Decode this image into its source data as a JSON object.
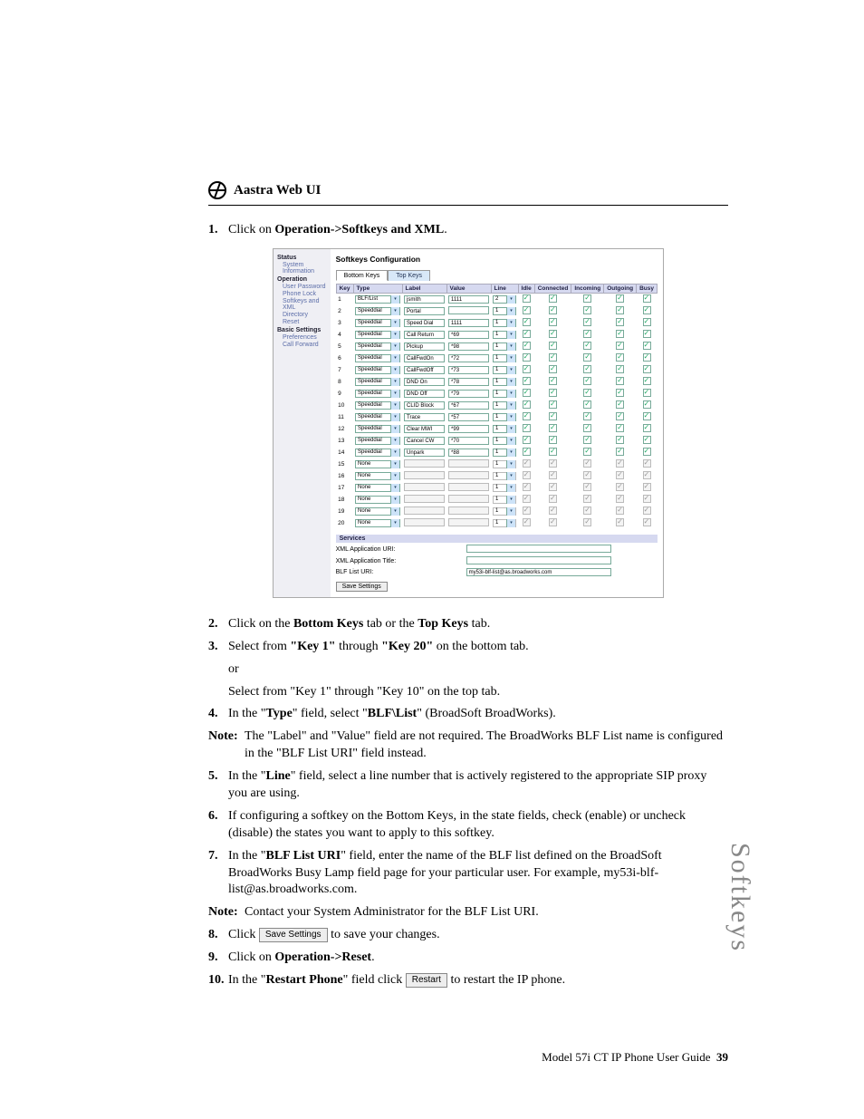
{
  "header": {
    "title": "Aastra Web UI"
  },
  "screenshot": {
    "sidebar": {
      "groups": [
        {
          "cat": "Status",
          "items": [
            "System Information"
          ]
        },
        {
          "cat": "Operation",
          "items": [
            "User Password",
            "Phone Lock",
            "Softkeys and XML",
            "Directory",
            "Reset"
          ]
        },
        {
          "cat": "Basic Settings",
          "items": [
            "Preferences",
            "Call Forward"
          ]
        }
      ]
    },
    "title": "Softkeys Configuration",
    "tabs": {
      "active": "Bottom Keys",
      "inactive": "Top Keys"
    },
    "columns": [
      "Key",
      "Type",
      "Label",
      "Value",
      "Line",
      "Idle",
      "Connected",
      "Incoming",
      "Outgoing",
      "Busy"
    ],
    "rows": [
      {
        "key": "1",
        "type": "BLF/List",
        "label": "jsmith",
        "value": "1111",
        "line": "2",
        "enabled": true
      },
      {
        "key": "2",
        "type": "Speeddial",
        "label": "Portal",
        "value": "",
        "line": "1",
        "enabled": true
      },
      {
        "key": "3",
        "type": "Speeddial",
        "label": "Speed Dial",
        "value": "1111",
        "line": "1",
        "enabled": true
      },
      {
        "key": "4",
        "type": "Speeddial",
        "label": "Call Return",
        "value": "*69",
        "line": "1",
        "enabled": true
      },
      {
        "key": "5",
        "type": "Speeddial",
        "label": "Pickup",
        "value": "*98",
        "line": "1",
        "enabled": true
      },
      {
        "key": "6",
        "type": "Speeddial",
        "label": "CallFwdOn",
        "value": "*72",
        "line": "1",
        "enabled": true
      },
      {
        "key": "7",
        "type": "Speeddial",
        "label": "CallFwdOff",
        "value": "*73",
        "line": "1",
        "enabled": true
      },
      {
        "key": "8",
        "type": "Speeddial",
        "label": "DND On",
        "value": "*78",
        "line": "1",
        "enabled": true
      },
      {
        "key": "9",
        "type": "Speeddial",
        "label": "DND Off",
        "value": "*79",
        "line": "1",
        "enabled": true
      },
      {
        "key": "10",
        "type": "Speeddial",
        "label": "CLID Block",
        "value": "*67",
        "line": "1",
        "enabled": true
      },
      {
        "key": "11",
        "type": "Speeddial",
        "label": "Trace",
        "value": "*57",
        "line": "1",
        "enabled": true
      },
      {
        "key": "12",
        "type": "Speeddial",
        "label": "Clear MWI",
        "value": "*99",
        "line": "1",
        "enabled": true
      },
      {
        "key": "13",
        "type": "Speeddial",
        "label": "Cancel CW",
        "value": "*70",
        "line": "1",
        "enabled": true
      },
      {
        "key": "14",
        "type": "Speeddial",
        "label": "Unpark",
        "value": "*88",
        "line": "1",
        "enabled": true
      },
      {
        "key": "15",
        "type": "None",
        "label": "",
        "value": "",
        "line": "1",
        "enabled": false
      },
      {
        "key": "16",
        "type": "None",
        "label": "",
        "value": "",
        "line": "1",
        "enabled": false
      },
      {
        "key": "17",
        "type": "None",
        "label": "",
        "value": "",
        "line": "1",
        "enabled": false
      },
      {
        "key": "18",
        "type": "None",
        "label": "",
        "value": "",
        "line": "1",
        "enabled": false
      },
      {
        "key": "19",
        "type": "None",
        "label": "",
        "value": "",
        "line": "1",
        "enabled": false
      },
      {
        "key": "20",
        "type": "None",
        "label": "",
        "value": "",
        "line": "1",
        "enabled": false
      }
    ],
    "services": {
      "header": "Services",
      "rows": [
        {
          "label": "XML Application URI:",
          "value": ""
        },
        {
          "label": "XML Application Title:",
          "value": ""
        },
        {
          "label": "BLF List URI:",
          "value": "my53i-blf-list@as.broadworks.com"
        }
      ]
    },
    "save_button": "Save Settings"
  },
  "steps": {
    "s1_pre": "Click on ",
    "s1_bold": "Operation->Softkeys and XML",
    "s2_a": "Click on the ",
    "s2_b1": "Bottom Keys",
    "s2_c": " tab or the ",
    "s2_b2": "Top Keys",
    "s2_d": " tab.",
    "s3_a": "Select from ",
    "s3_b1": "\"Key 1\"",
    "s3_c": " through ",
    "s3_b2": "\"Key 20\"",
    "s3_d": " on the bottom tab.",
    "s3_or": "or",
    "s3_e": "Select from ",
    "s3_b3": "\"Key 1\"",
    "s3_f": " through ",
    "s3_b4": "\"Key 10\"",
    "s3_g": " on the top tab.",
    "s4_a": "In the \"",
    "s4_b": "Type",
    "s4_c": "\" field, select \"",
    "s4_d": "BLF\\List",
    "s4_e": "\" (BroadSoft BroadWorks).",
    "n1": "The \"Label\" and \"Value\" field are not required. The BroadWorks BLF List name is configured in the \"BLF List URI\" field instead.",
    "s5_a": "In the \"",
    "s5_b": "Line",
    "s5_c": "\" field, select a line number that is actively registered to the appropriate SIP proxy you are using.",
    "s6": "If configuring a softkey on the Bottom Keys, in the state fields, check (enable) or uncheck (disable) the states you want to apply to this softkey.",
    "s7_a": "In the \"",
    "s7_b": "BLF List URI",
    "s7_c": "\" field, enter the name of the BLF list defined on the BroadSoft BroadWorks Busy Lamp field page for your particular user. For example, my53i-blf-list@as.broadworks.com.",
    "n2": "Contact your System Administrator for the BLF List URI.",
    "s8_a": "Click ",
    "s8_btn": "Save Settings",
    "s8_b": " to save your changes.",
    "s9_a": "Click on ",
    "s9_b": "Operation->Reset",
    "s10_a": "In the \"",
    "s10_b": "Restart Phone",
    "s10_c": "\" field click ",
    "s10_btn": "Restart",
    "s10_d": " to restart the IP phone."
  },
  "note_label": "Note:",
  "footer": {
    "text": "Model 57i CT IP Phone User Guide",
    "page": "39"
  },
  "side_label": "Softkeys"
}
